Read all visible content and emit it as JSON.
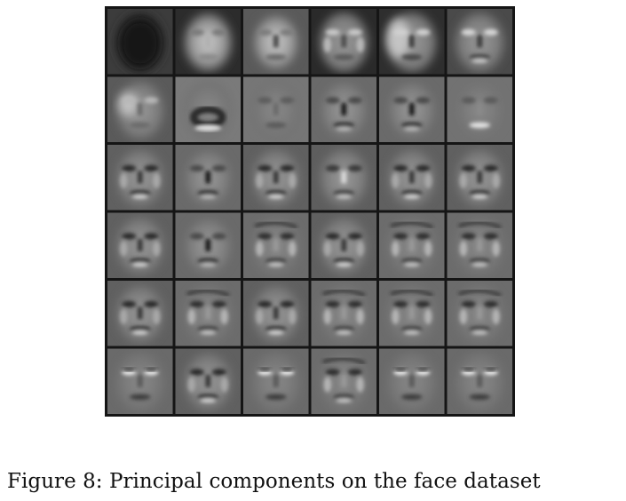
{
  "figure": {
    "caption": "Figure 8: Principal components on the face dataset",
    "grid": {
      "rows": 6,
      "cols": 6,
      "tiles": [
        {
          "component": 1,
          "pattern": "dark-face"
        },
        {
          "component": 2,
          "pattern": "bright-center"
        },
        {
          "component": 3,
          "pattern": "bright-oval"
        },
        {
          "component": 4,
          "pattern": "bright-sides"
        },
        {
          "component": 5,
          "pattern": "left-lit"
        },
        {
          "component": 6,
          "pattern": "bright-top"
        },
        {
          "component": 7,
          "pattern": "bright-left"
        },
        {
          "component": 8,
          "pattern": "mouth-ring"
        },
        {
          "component": 9,
          "pattern": "soft-face"
        },
        {
          "component": 10,
          "pattern": "nose-dark"
        },
        {
          "component": 11,
          "pattern": "nose-dark"
        },
        {
          "component": 12,
          "pattern": "bright-mouth"
        },
        {
          "component": 13,
          "pattern": "eyes-mouth"
        },
        {
          "component": 14,
          "pattern": "nose-dark"
        },
        {
          "component": 15,
          "pattern": "eyes-mouth"
        },
        {
          "component": 16,
          "pattern": "nose-bright"
        },
        {
          "component": 17,
          "pattern": "eyes-mouth"
        },
        {
          "component": 18,
          "pattern": "eyes-mouth"
        },
        {
          "component": 19,
          "pattern": "eyes-mouth"
        },
        {
          "component": 20,
          "pattern": "nose-dark"
        },
        {
          "component": 21,
          "pattern": "textured"
        },
        {
          "component": 22,
          "pattern": "eyes-mouth"
        },
        {
          "component": 23,
          "pattern": "textured"
        },
        {
          "component": 24,
          "pattern": "textured"
        },
        {
          "component": 25,
          "pattern": "eyes-mouth"
        },
        {
          "component": 26,
          "pattern": "textured"
        },
        {
          "component": 27,
          "pattern": "eyes-mouth"
        },
        {
          "component": 28,
          "pattern": "textured"
        },
        {
          "component": 29,
          "pattern": "textured"
        },
        {
          "component": 30,
          "pattern": "textured"
        },
        {
          "component": 31,
          "pattern": "eyes-bright"
        },
        {
          "component": 32,
          "pattern": "eyes-mouth"
        },
        {
          "component": 33,
          "pattern": "eyes-bright"
        },
        {
          "component": 34,
          "pattern": "textured"
        },
        {
          "component": 35,
          "pattern": "eyes-bright"
        },
        {
          "component": 36,
          "pattern": "eyes-bright"
        }
      ]
    }
  }
}
